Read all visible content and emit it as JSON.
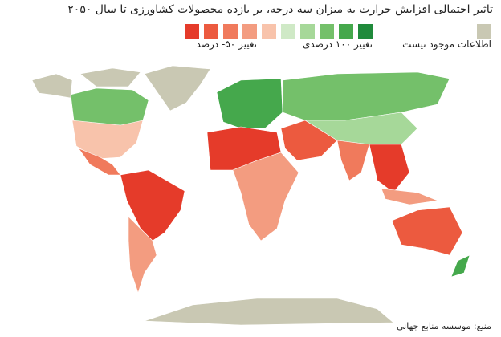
{
  "title": "تاثیر احتمالی افزایش حرارت به میزان سه درجه، بر بازده محصولات کشاورزی تا سال ۲۰۵۰",
  "legend": {
    "no_data_label": "اطلاعات موجود نیست",
    "no_data_color": "#c9c8b3",
    "high_label": "تغییر ۱۰۰ درصدی",
    "low_label": "تغییر ۵۰- درصد",
    "scale_colors": [
      "#e53b2a",
      "#ec5a3f",
      "#f07a5c",
      "#f39c80",
      "#f8c3ab",
      "#cfe9c6",
      "#a6d899",
      "#74c06a",
      "#45a84c",
      "#1f8a3b"
    ]
  },
  "source": "منبع: موسسه منابع جهانی"
}
